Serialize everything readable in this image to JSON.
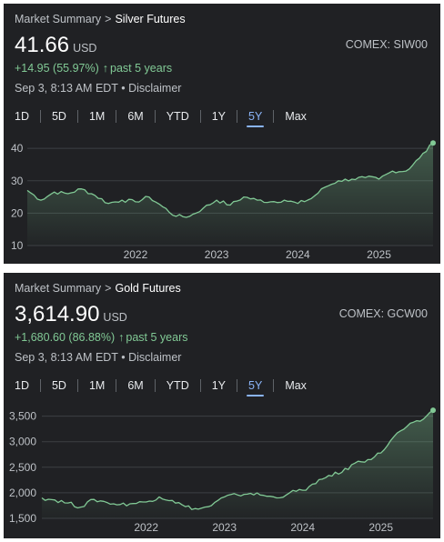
{
  "panels": [
    {
      "breadcrumb": {
        "root": "Market Summary",
        "separator": ">",
        "current": "Silver Futures"
      },
      "price": "41.66",
      "unit": "USD",
      "ticker": "COMEX: SIW00",
      "change": "+14.95 (55.97%)",
      "change_arrow": "↑",
      "change_period": "past 5 years",
      "timestamp": "Sep 3, 8:13 AM EDT",
      "bullet": "•",
      "disclaimer": "Disclaimer",
      "tabs": [
        "1D",
        "5D",
        "1M",
        "6M",
        "YTD",
        "1Y",
        "5Y",
        "Max"
      ],
      "active_tab": "5Y"
    },
    {
      "breadcrumb": {
        "root": "Market Summary",
        "separator": ">",
        "current": "Gold Futures"
      },
      "price": "3,614.90",
      "unit": "USD",
      "ticker": "COMEX: GCW00",
      "change": "+1,680.60 (86.88%)",
      "change_arrow": "↑",
      "change_period": "past 5 years",
      "timestamp": "Sep 3, 8:13 AM EDT",
      "bullet": "•",
      "disclaimer": "Disclaimer",
      "tabs": [
        "1D",
        "5D",
        "1M",
        "6M",
        "YTD",
        "1Y",
        "5Y",
        "Max"
      ],
      "active_tab": "5Y"
    }
  ],
  "colors": {
    "background": "#202124",
    "line": "#81c995",
    "gain_text": "#81c995",
    "active_tab": "#8ab4f8",
    "gridline": "#3c4043"
  },
  "chart_data": [
    {
      "type": "area",
      "series": [
        {
          "x": [
            "2020-09",
            "2020-11",
            "2021-01",
            "2021-03",
            "2021-05",
            "2021-07",
            "2021-09",
            "2021-11",
            "2022-01",
            "2022-03",
            "2022-05",
            "2022-07",
            "2022-09",
            "2022-11",
            "2023-01",
            "2023-03",
            "2023-05",
            "2023-07",
            "2023-09",
            "2023-11",
            "2024-01",
            "2024-03",
            "2024-05",
            "2024-07",
            "2024-09",
            "2024-11",
            "2025-01",
            "2025-03",
            "2025-05",
            "2025-07",
            "2025-09"
          ],
          "values": [
            27,
            24,
            26.5,
            26,
            27.5,
            25.5,
            23,
            24,
            23.5,
            25,
            22,
            19,
            19,
            21.5,
            24,
            22.5,
            25,
            24,
            23.5,
            24,
            23,
            24.5,
            28,
            30,
            30.5,
            31,
            30.5,
            33,
            33,
            37,
            41.66
          ]
        }
      ],
      "yticks": [
        10,
        20,
        30,
        40
      ],
      "ylim": [
        10,
        42
      ],
      "xticks": [
        {
          "label": "2022",
          "at": "2022-01"
        },
        {
          "label": "2023",
          "at": "2023-01"
        },
        {
          "label": "2024",
          "at": "2024-01"
        },
        {
          "label": "2025",
          "at": "2025-01"
        }
      ],
      "grid": true,
      "last_point_marker": true
    },
    {
      "type": "area",
      "series": [
        {
          "x": [
            "2020-09",
            "2020-11",
            "2021-01",
            "2021-03",
            "2021-05",
            "2021-07",
            "2021-09",
            "2021-11",
            "2022-01",
            "2022-03",
            "2022-05",
            "2022-07",
            "2022-09",
            "2022-11",
            "2023-01",
            "2023-03",
            "2023-05",
            "2023-07",
            "2023-09",
            "2023-11",
            "2024-01",
            "2024-03",
            "2024-05",
            "2024-07",
            "2024-09",
            "2024-11",
            "2025-01",
            "2025-03",
            "2025-05",
            "2025-07",
            "2025-09"
          ],
          "values": [
            1900,
            1860,
            1800,
            1720,
            1870,
            1810,
            1770,
            1790,
            1820,
            1920,
            1850,
            1730,
            1680,
            1750,
            1920,
            1960,
            1990,
            1950,
            1900,
            2000,
            2050,
            2180,
            2340,
            2400,
            2580,
            2650,
            2780,
            3100,
            3300,
            3400,
            3614.9
          ]
        }
      ],
      "yticks": [
        1500,
        2000,
        2500,
        3000,
        3500
      ],
      "yticklabels": [
        "1,500",
        "2,000",
        "2,500",
        "3,000",
        "3,500"
      ],
      "ylim": [
        1500,
        3600
      ],
      "xticks": [
        {
          "label": "2022",
          "at": "2022-01"
        },
        {
          "label": "2023",
          "at": "2023-01"
        },
        {
          "label": "2024",
          "at": "2024-01"
        },
        {
          "label": "2025",
          "at": "2025-01"
        }
      ],
      "grid": true,
      "last_point_marker": true
    }
  ]
}
